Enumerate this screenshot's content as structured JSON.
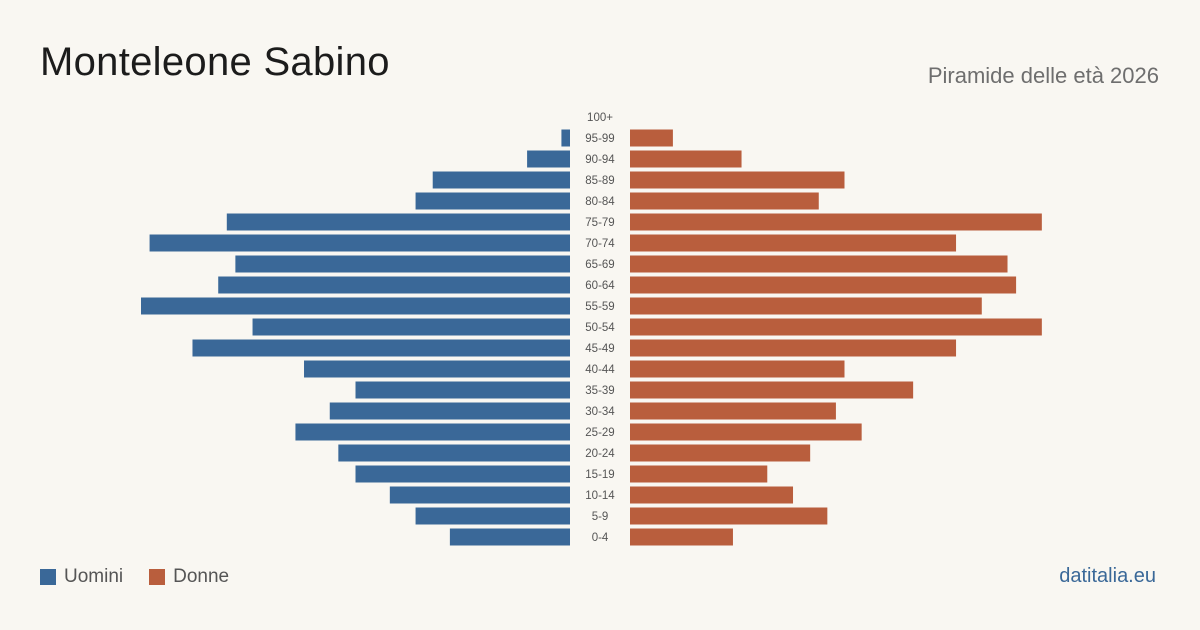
{
  "title": "Monteleone Sabino",
  "subtitle": "Piramide delle età 2026",
  "source": "datitalia.eu",
  "colors": {
    "men": "#3a6898",
    "women": "#b95e3d"
  },
  "legend": [
    {
      "label": "Uomini",
      "color": "#3a6898"
    },
    {
      "label": "Donne",
      "color": "#b95e3d"
    }
  ],
  "chart_data": {
    "type": "bar",
    "orientation": "horizontal-pyramid",
    "categories": [
      "100+",
      "95-99",
      "90-94",
      "85-89",
      "80-84",
      "75-79",
      "70-74",
      "65-69",
      "60-64",
      "55-59",
      "50-54",
      "45-49",
      "40-44",
      "35-39",
      "30-34",
      "25-29",
      "20-24",
      "15-19",
      "10-14",
      "5-9",
      "0-4"
    ],
    "series": [
      {
        "name": "Uomini",
        "values": [
          0,
          1,
          5,
          16,
          18,
          40,
          49,
          39,
          41,
          50,
          37,
          44,
          31,
          25,
          28,
          32,
          27,
          25,
          21,
          18,
          14
        ]
      },
      {
        "name": "Donne",
        "values": [
          0,
          5,
          13,
          25,
          22,
          48,
          38,
          44,
          45,
          41,
          48,
          38,
          25,
          33,
          24,
          27,
          21,
          16,
          19,
          23,
          12
        ]
      }
    ],
    "legend_position": "bottom-left",
    "grid": false
  }
}
